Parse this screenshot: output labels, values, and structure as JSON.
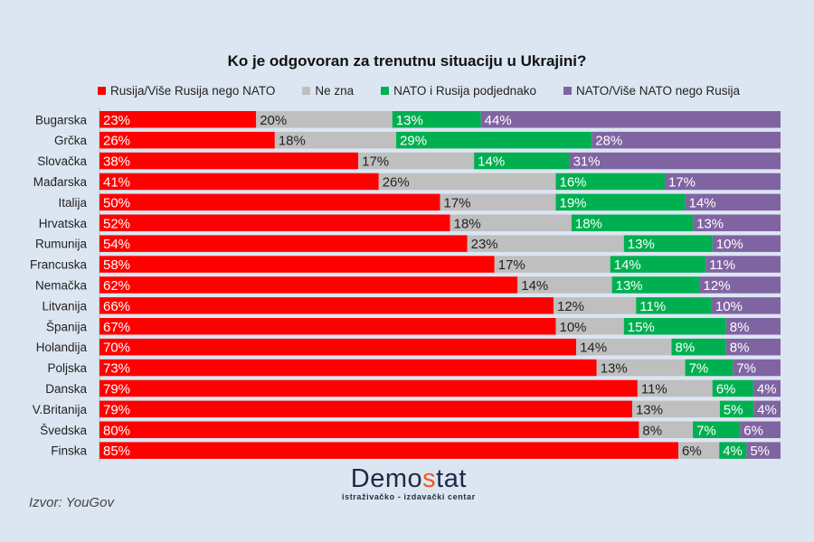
{
  "chart_data": {
    "type": "bar",
    "stacked": true,
    "orientation": "horizontal",
    "title": "Ko je odgovoran za trenutnu situaciju u Ukrajini?",
    "legend_position": "top",
    "categories": [
      "Bugarska",
      "Grčka",
      "Slovačka",
      "Mađarska",
      "Italija",
      "Hrvatska",
      "Rumunija",
      "Francuska",
      "Nemačka",
      "Litvanija",
      "Španija",
      "Holandija",
      "Poljska",
      "Danska",
      "V.Britanija",
      "Švedska",
      "Finska"
    ],
    "series": [
      {
        "name": "Rusija/Više Rusija nego NATO",
        "color": "#ff0000",
        "values": [
          23,
          26,
          38,
          41,
          50,
          52,
          54,
          58,
          62,
          66,
          67,
          70,
          73,
          79,
          79,
          80,
          85
        ]
      },
      {
        "name": "Ne zna",
        "color": "#bfbfbf",
        "values": [
          20,
          18,
          17,
          26,
          17,
          18,
          23,
          17,
          14,
          12,
          10,
          14,
          13,
          11,
          13,
          8,
          6
        ]
      },
      {
        "name": "NATO i Rusija podjednako",
        "color": "#00b050",
        "values": [
          13,
          29,
          14,
          16,
          19,
          18,
          13,
          14,
          13,
          11,
          15,
          8,
          7,
          6,
          5,
          7,
          4
        ]
      },
      {
        "name": "NATO/Više NATO nego Rusija",
        "color": "#8064a2",
        "values": [
          44,
          28,
          31,
          17,
          14,
          13,
          10,
          11,
          12,
          10,
          8,
          8,
          7,
          4,
          4,
          6,
          5
        ]
      }
    ],
    "label_format": "{v}%"
  },
  "source": "Izvor: YouGov",
  "logo": {
    "text_a": "Demo",
    "text_b": "s",
    "text_c": "tat",
    "subtitle": "istraživačko - izdavački centar"
  }
}
